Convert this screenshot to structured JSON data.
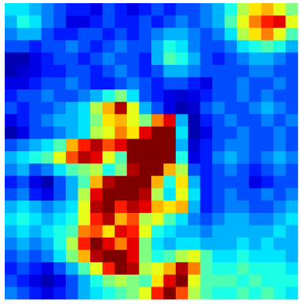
{
  "chart_data": {
    "type": "heatmap",
    "colormap": "jet",
    "clim": [
      0,
      1
    ],
    "values": [
      [
        0.35,
        0.35,
        0.3,
        0.25,
        0.2,
        0.15,
        0.15,
        0.1,
        0.2,
        0.15,
        0.1,
        0.15,
        0.2,
        0.15,
        0.2,
        0.2,
        0.25,
        0.3,
        0.4,
        0.55,
        0.65,
        0.7,
        0.6,
        0.5
      ],
      [
        0.3,
        0.4,
        0.35,
        0.25,
        0.2,
        0.1,
        0.1,
        0.15,
        0.2,
        0.15,
        0.15,
        0.2,
        0.15,
        0.2,
        0.25,
        0.2,
        0.25,
        0.3,
        0.45,
        0.6,
        0.75,
        0.85,
        0.9,
        0.6
      ],
      [
        0.25,
        0.3,
        0.3,
        0.2,
        0.15,
        0.15,
        0.2,
        0.2,
        0.15,
        0.2,
        0.15,
        0.2,
        0.25,
        0.3,
        0.3,
        0.25,
        0.2,
        0.25,
        0.35,
        0.55,
        0.65,
        0.75,
        0.6,
        0.45
      ],
      [
        0.2,
        0.2,
        0.15,
        0.2,
        0.2,
        0.25,
        0.2,
        0.15,
        0.2,
        0.25,
        0.2,
        0.2,
        0.3,
        0.4,
        0.35,
        0.25,
        0.2,
        0.2,
        0.25,
        0.35,
        0.4,
        0.45,
        0.4,
        0.3
      ],
      [
        0.05,
        0.05,
        0.1,
        0.15,
        0.2,
        0.2,
        0.15,
        0.2,
        0.25,
        0.2,
        0.2,
        0.15,
        0.3,
        0.45,
        0.4,
        0.3,
        0.2,
        0.15,
        0.2,
        0.25,
        0.3,
        0.3,
        0.25,
        0.2
      ],
      [
        0.05,
        0.08,
        0.1,
        0.15,
        0.15,
        0.2,
        0.2,
        0.15,
        0.2,
        0.25,
        0.2,
        0.15,
        0.2,
        0.3,
        0.3,
        0.25,
        0.2,
        0.2,
        0.2,
        0.2,
        0.25,
        0.25,
        0.2,
        0.2
      ],
      [
        0.1,
        0.1,
        0.15,
        0.2,
        0.2,
        0.25,
        0.2,
        0.15,
        0.15,
        0.2,
        0.25,
        0.2,
        0.15,
        0.2,
        0.2,
        0.15,
        0.1,
        0.2,
        0.2,
        0.25,
        0.2,
        0.2,
        0.25,
        0.2
      ],
      [
        0.15,
        0.2,
        0.2,
        0.25,
        0.2,
        0.2,
        0.25,
        0.3,
        0.4,
        0.5,
        0.35,
        0.2,
        0.15,
        0.1,
        0.08,
        0.1,
        0.15,
        0.2,
        0.2,
        0.25,
        0.2,
        0.25,
        0.2,
        0.2
      ],
      [
        0.2,
        0.15,
        0.2,
        0.2,
        0.25,
        0.3,
        0.35,
        0.55,
        0.7,
        0.95,
        0.6,
        0.3,
        0.2,
        0.1,
        0.05,
        0.08,
        0.2,
        0.25,
        0.2,
        0.2,
        0.25,
        0.3,
        0.25,
        0.2
      ],
      [
        0.1,
        0.15,
        0.2,
        0.25,
        0.3,
        0.3,
        0.35,
        0.5,
        0.65,
        0.7,
        0.6,
        0.5,
        0.75,
        0.9,
        0.3,
        0.05,
        0.15,
        0.2,
        0.25,
        0.2,
        0.2,
        0.25,
        0.2,
        0.25
      ],
      [
        0.05,
        0.1,
        0.2,
        0.2,
        0.25,
        0.3,
        0.35,
        0.55,
        0.6,
        0.75,
        0.65,
        0.9,
        1,
        1,
        0.35,
        0.05,
        0.1,
        0.2,
        0.2,
        0.25,
        0.2,
        0.2,
        0.25,
        0.2
      ],
      [
        0.2,
        0.25,
        0.3,
        0.35,
        0.45,
        0.7,
        0.85,
        0.95,
        0.8,
        0.9,
        1,
        1,
        1,
        1,
        0.3,
        0.08,
        0.15,
        0.2,
        0.25,
        0.25,
        0.2,
        0.2,
        0.25,
        0.2
      ],
      [
        0.3,
        0.35,
        0.4,
        0.45,
        0.6,
        0.8,
        0.95,
        0.9,
        0.6,
        0.45,
        1,
        1,
        1,
        1,
        0.4,
        0.1,
        0.15,
        0.25,
        0.3,
        0.25,
        0.2,
        0.25,
        0.3,
        0.25
      ],
      [
        0.25,
        0.3,
        0.2,
        0.25,
        0.35,
        0.45,
        0.5,
        0.55,
        0.4,
        0.5,
        0.95,
        1,
        1,
        0.7,
        0.55,
        0.2,
        0.15,
        0.2,
        0.25,
        0.2,
        0.15,
        0.2,
        0.25,
        0.2
      ],
      [
        0.15,
        0.2,
        0.1,
        0.05,
        0.2,
        0.3,
        0.45,
        0.7,
        0.95,
        1,
        1,
        1,
        0.7,
        0.4,
        0.65,
        0.3,
        0.15,
        0.2,
        0.2,
        0.2,
        0.1,
        0.15,
        0.2,
        0.2
      ],
      [
        0.2,
        0.25,
        0.15,
        0.1,
        0.2,
        0.3,
        0.55,
        0.9,
        1,
        1,
        1,
        0.95,
        0.55,
        0.35,
        0.6,
        0.35,
        0.15,
        0.2,
        0.25,
        0.2,
        0.2,
        0.25,
        0.2,
        0.25
      ],
      [
        0.3,
        0.35,
        0.3,
        0.25,
        0.3,
        0.35,
        0.6,
        0.95,
        1,
        0.85,
        0.95,
        0.9,
        0.7,
        0.65,
        0.7,
        0.3,
        0.15,
        0.2,
        0.25,
        0.25,
        0.2,
        0.2,
        0.25,
        0.3
      ],
      [
        0.35,
        0.4,
        0.35,
        0.3,
        0.35,
        0.4,
        0.6,
        0.85,
        0.95,
        0.7,
        0.8,
        0.55,
        0.6,
        0.45,
        0.35,
        0.25,
        0.2,
        0.25,
        0.3,
        0.3,
        0.25,
        0.25,
        0.3,
        0.35
      ],
      [
        0.3,
        0.35,
        0.3,
        0.35,
        0.4,
        0.45,
        0.75,
        0.8,
        0.65,
        0.9,
        0.85,
        0.6,
        0.4,
        0.35,
        0.3,
        0.3,
        0.25,
        0.3,
        0.3,
        0.3,
        0.3,
        0.3,
        0.35,
        0.3
      ],
      [
        0.25,
        0.3,
        0.25,
        0.3,
        0.4,
        0.55,
        0.85,
        1,
        0.9,
        0.75,
        0.9,
        0.5,
        0.35,
        0.3,
        0.35,
        0.35,
        0.3,
        0.3,
        0.3,
        0.35,
        0.3,
        0.35,
        0.3,
        0.3
      ],
      [
        0.2,
        0.25,
        0.2,
        0.25,
        0.35,
        0.5,
        0.7,
        0.95,
        1,
        1,
        0.9,
        0.5,
        0.4,
        0.45,
        0.55,
        0.6,
        0.45,
        0.35,
        0.35,
        0.4,
        0.35,
        0.35,
        0.35,
        0.3
      ],
      [
        0.15,
        0.2,
        0.15,
        0.1,
        0.2,
        0.3,
        0.45,
        0.6,
        0.85,
        1,
        0.95,
        0.55,
        0.6,
        0.7,
        0.95,
        0.75,
        0.45,
        0.4,
        0.4,
        0.45,
        0.4,
        0.4,
        0.4,
        0.35
      ],
      [
        0.2,
        0.15,
        0.1,
        0.05,
        0.1,
        0.2,
        0.3,
        0.4,
        0.5,
        0.55,
        0.5,
        0.45,
        0.65,
        0.9,
        1,
        0.6,
        0.45,
        0.45,
        0.45,
        0.4,
        0.45,
        0.4,
        0.4,
        0.4
      ],
      [
        0.25,
        0.2,
        0.15,
        0.1,
        0.15,
        0.2,
        0.3,
        0.35,
        0.4,
        0.45,
        0.5,
        0.6,
        0.85,
        1,
        0.8,
        0.55,
        0.45,
        0.4,
        0.4,
        0.45,
        0.4,
        0.45,
        0.4,
        0.35
      ]
    ]
  }
}
